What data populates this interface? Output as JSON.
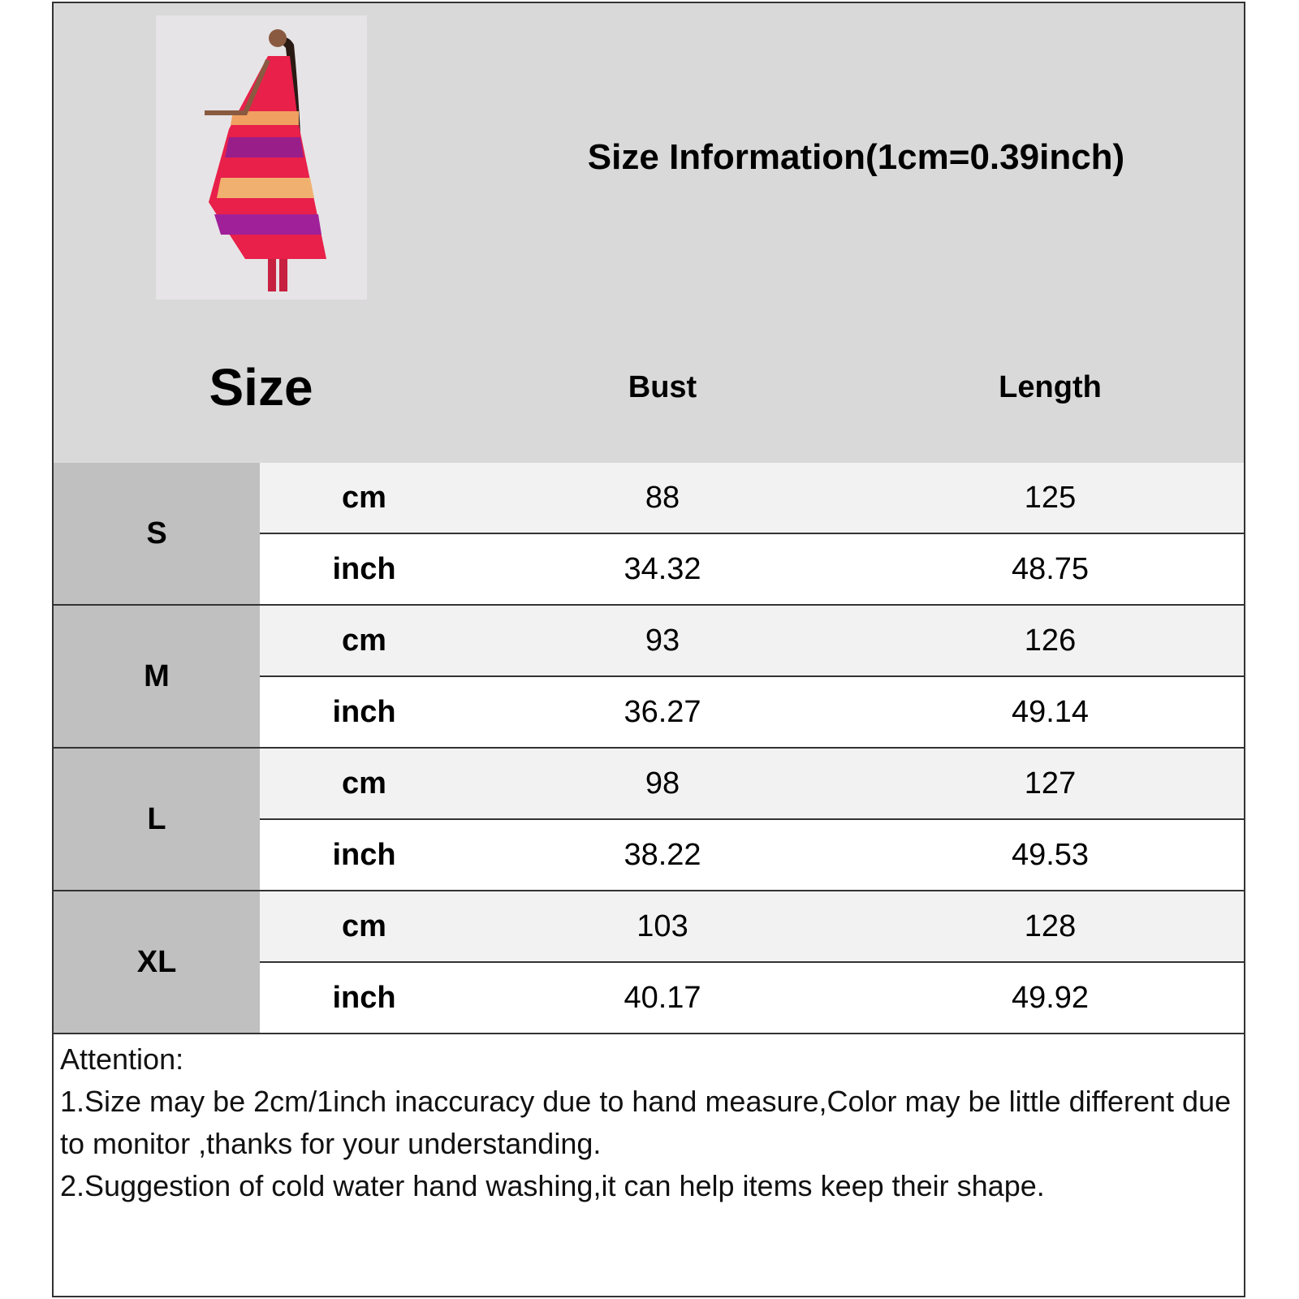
{
  "title": "Size Information(1cm=0.39inch)",
  "headers": {
    "size": "Size",
    "bust": "Bust",
    "length": "Length"
  },
  "rows": [
    {
      "size": "S",
      "cm": {
        "unit": "cm",
        "bust": "88",
        "length": "125"
      },
      "inch": {
        "unit": "inch",
        "bust": "34.32",
        "length": "48.75"
      }
    },
    {
      "size": "M",
      "cm": {
        "unit": "cm",
        "bust": "93",
        "length": "126"
      },
      "inch": {
        "unit": "inch",
        "bust": "36.27",
        "length": "49.14"
      }
    },
    {
      "size": "L",
      "cm": {
        "unit": "cm",
        "bust": "98",
        "length": "127"
      },
      "inch": {
        "unit": "inch",
        "bust": "38.22",
        "length": "49.53"
      }
    },
    {
      "size": "XL",
      "cm": {
        "unit": "cm",
        "bust": "103",
        "length": "128"
      },
      "inch": {
        "unit": "inch",
        "bust": "40.17",
        "length": "49.92"
      }
    }
  ],
  "notes": {
    "heading": "Attention:",
    "line1": "1.Size may be 2cm/1inch inaccuracy due to hand measure,Color may be little different due to monitor ,thanks for your understanding.",
    "line2": "2.Suggestion of cold water hand washing,it can help items keep their shape."
  },
  "colors": {
    "header_bg": "#d9d9d9",
    "size_col_bg": "#c0c0c0",
    "cm_row_bg": "#f2f2f2",
    "inch_row_bg": "#ffffff",
    "border": "#333333"
  }
}
